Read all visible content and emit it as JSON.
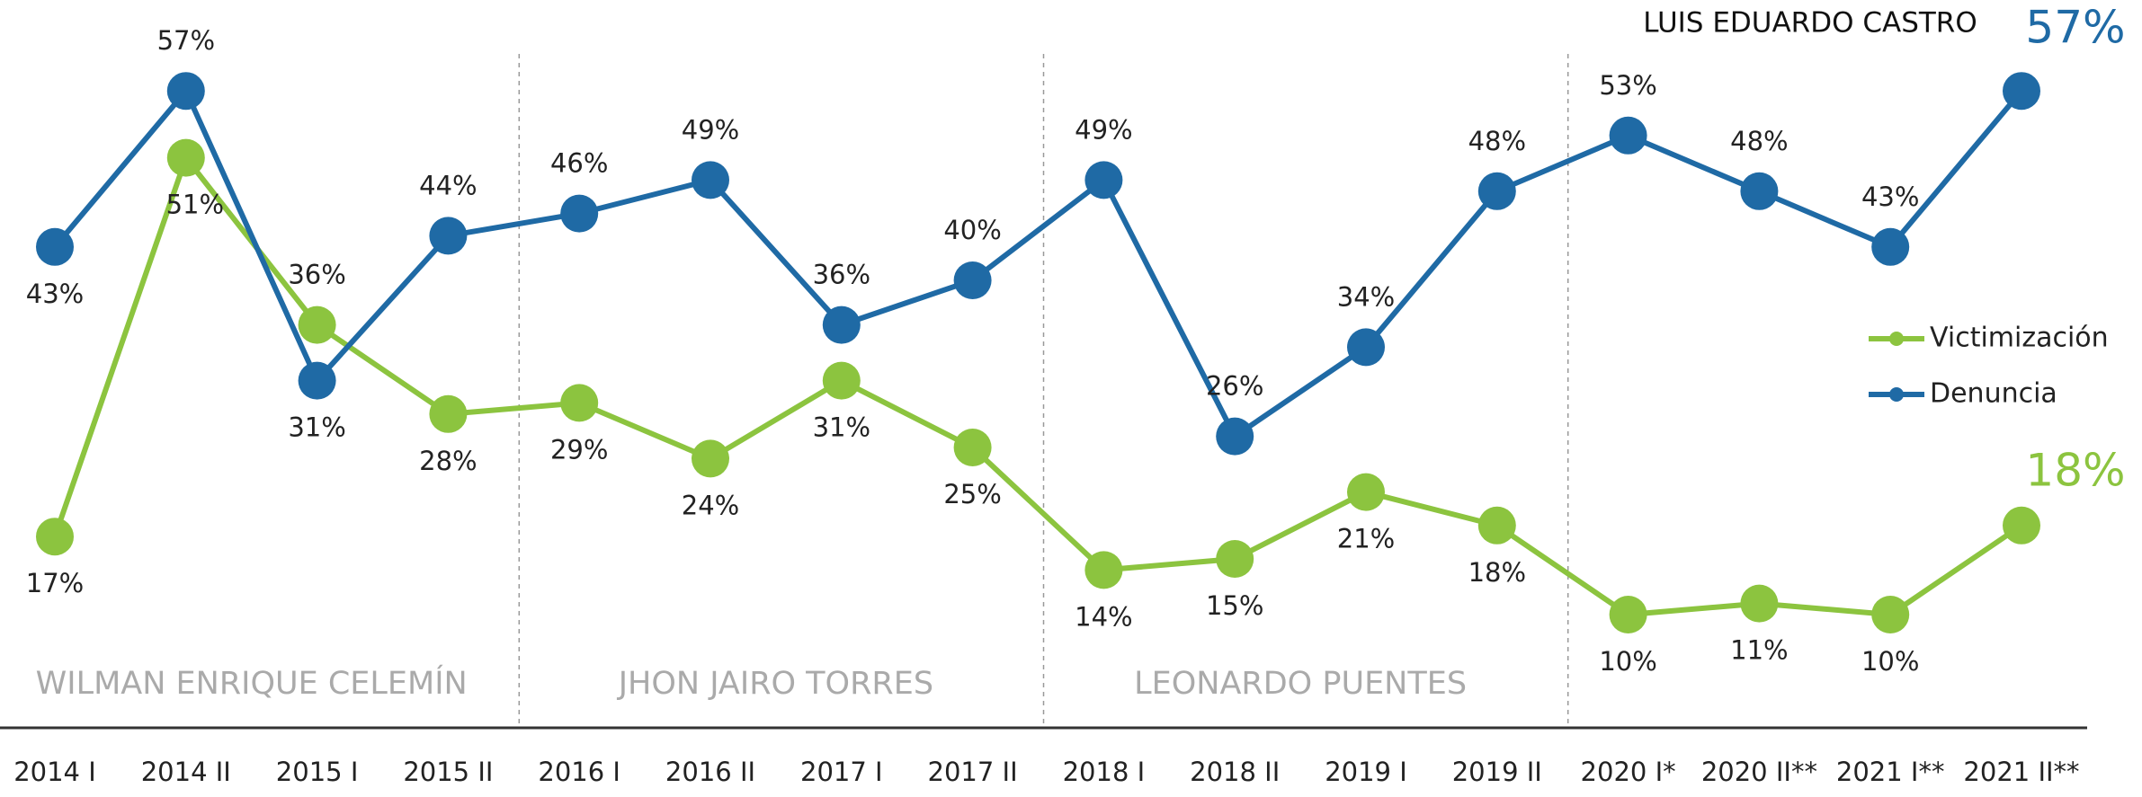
{
  "chart_data": {
    "type": "line",
    "categories": [
      "2014 I",
      "2014 II",
      "2015 I",
      "2015 II",
      "2016 I",
      "2016 II",
      "2017 I",
      "2017 II",
      "2018 I",
      "2018 II",
      "2019 I",
      "2019 II",
      "2020 I*",
      "2020 II**",
      "2021 I**",
      "2021 II**"
    ],
    "series": [
      {
        "name": "Victimización",
        "color": "#8cc43f",
        "values": [
          17,
          51,
          36,
          28,
          29,
          24,
          31,
          25,
          14,
          15,
          21,
          18,
          10,
          11,
          10,
          18
        ],
        "value_labels": [
          "17%",
          "51%",
          "36%",
          "28%",
          "29%",
          "24%",
          "31%",
          "25%",
          "14%",
          "15%",
          "21%",
          "18%",
          "10%",
          "11%",
          "10%",
          "18%"
        ]
      },
      {
        "name": "Denuncia",
        "color": "#1f6aa5",
        "values": [
          43,
          57,
          31,
          44,
          46,
          49,
          36,
          40,
          49,
          26,
          34,
          48,
          53,
          48,
          43,
          57
        ],
        "value_labels": [
          "43%",
          "57%",
          "31%",
          "44%",
          "46%",
          "49%",
          "36%",
          "40%",
          "49%",
          "26%",
          "34%",
          "48%",
          "53%",
          "48%",
          "43%",
          "57%"
        ]
      }
    ],
    "periods": [
      "WILMAN ENRIQUE CELEMÍN",
      "JHON JAIRO TORRES",
      "LEONARDO PUENTES",
      "LUIS EDUARDO CASTRO"
    ],
    "ylim": [
      0,
      65
    ],
    "legend": "right"
  }
}
